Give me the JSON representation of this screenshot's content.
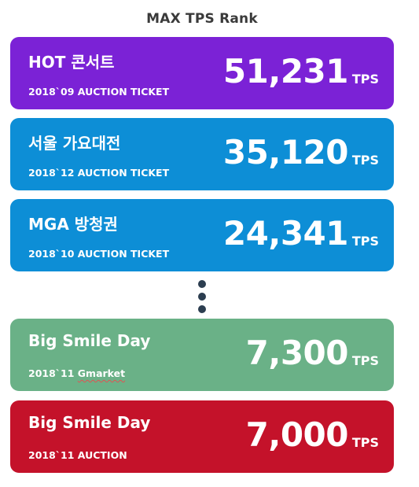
{
  "title": "MAX TPS Rank",
  "colors": {
    "purple": "#7b22d6",
    "blue": "#0d8ed6",
    "green": "#6ab187",
    "red": "#c4122a",
    "dots": "#2c3e50"
  },
  "cards": [
    {
      "name": "HOT 콘서트",
      "sub": "2018`09 AUCTION TICKET",
      "value": "51,231",
      "unit": "TPS"
    },
    {
      "name": "서울 가요대전",
      "sub": "2018`12 AUCTION TICKET",
      "value": "35,120",
      "unit": "TPS"
    },
    {
      "name": "MGA 방청권",
      "sub": "2018`10 AUCTION TICKET",
      "value": "24,341",
      "unit": "TPS"
    },
    {
      "name": "Big Smile Day",
      "sub_prefix": "2018`11 ",
      "sub_underlined": "Gmarket",
      "value": "7,300",
      "unit": "TPS"
    },
    {
      "name": "Big Smile Day",
      "sub": "2018`11 AUCTION",
      "value": "7,000",
      "unit": "TPS"
    }
  ]
}
